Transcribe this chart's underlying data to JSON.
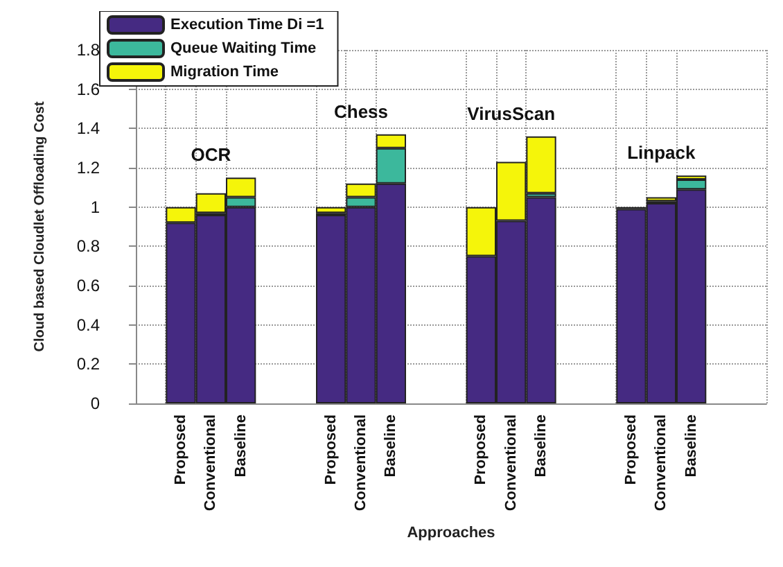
{
  "chart_data": {
    "type": "bar",
    "stacked": true,
    "xlabel": "Approaches",
    "ylabel": "Cloud based Cloudlet Offloading Cost",
    "categories": [
      null,
      "Proposed",
      "Conventional",
      "Baseline",
      null,
      null,
      "Proposed",
      "Conventional",
      "Baseline",
      null,
      null,
      "Proposed",
      "Conventional",
      "Baseline",
      null,
      null,
      "Proposed",
      "Conventional",
      "Baseline",
      null,
      null
    ],
    "series": [
      {
        "name": "Execution Time Di =1",
        "color": "#452a82",
        "values": [
          null,
          0.92,
          0.96,
          1.0,
          null,
          null,
          0.96,
          1.0,
          1.12,
          null,
          null,
          0.75,
          0.93,
          1.05,
          null,
          null,
          0.99,
          1.02,
          1.09,
          null,
          null
        ]
      },
      {
        "name": "Queue Waiting Time",
        "color": "#3cb89c",
        "values": [
          null,
          null,
          0.01,
          0.05,
          null,
          null,
          0.01,
          0.05,
          0.18,
          null,
          null,
          null,
          null,
          0.02,
          null,
          null,
          null,
          0.01,
          0.05,
          null,
          null
        ]
      },
      {
        "name": "Migration Time",
        "color": "#f5f50a",
        "values": [
          null,
          0.08,
          0.1,
          0.1,
          null,
          null,
          0.03,
          0.07,
          0.07,
          null,
          null,
          0.25,
          0.3,
          0.29,
          null,
          null,
          0.01,
          0.02,
          0.02,
          null,
          null
        ]
      }
    ],
    "annotations": [
      "OCR",
      "Chess",
      "VirusScan",
      "Linpack"
    ],
    "ylim": [
      0,
      1.8
    ],
    "yticks": [
      0,
      0.2,
      0.4,
      0.6,
      0.8,
      1,
      1.2,
      1.4,
      1.6,
      1.8
    ],
    "grid": true,
    "legend": "top left"
  }
}
